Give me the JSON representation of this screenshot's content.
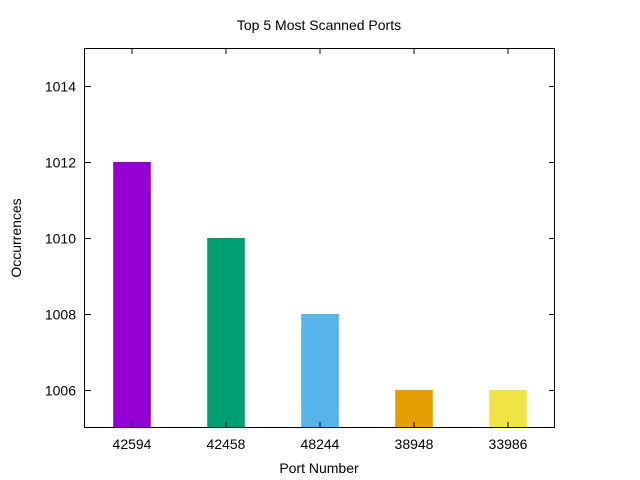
{
  "chart_data": {
    "type": "bar",
    "title": "Top 5 Most Scanned Ports",
    "xlabel": "Port Number",
    "ylabel": "Occurrences",
    "categories": [
      "42594",
      "42458",
      "48244",
      "38948",
      "33986"
    ],
    "values": [
      1012,
      1010,
      1008,
      1006,
      1006
    ],
    "bar_colors": [
      "#9400d3",
      "#009e73",
      "#56b4e9",
      "#e69f00",
      "#f0e442"
    ],
    "ylim": [
      1005,
      1015
    ],
    "yticks": [
      1006,
      1008,
      1010,
      1012,
      1014
    ],
    "grid": false,
    "legend": "none"
  }
}
